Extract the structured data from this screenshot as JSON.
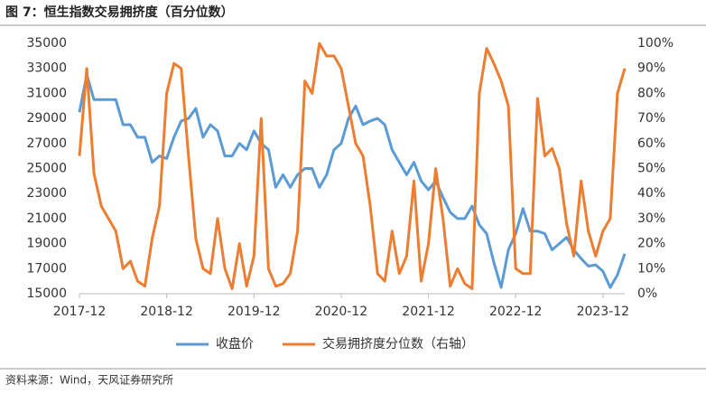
{
  "chart_data": {
    "type": "line",
    "title": "图 7：恒生指数交易拥挤度（百分位数）",
    "source": "资料来源：Wind，天风证券研究所",
    "x": [
      "2017-12",
      "2018-01",
      "2018-02",
      "2018-03",
      "2018-04",
      "2018-05",
      "2018-06",
      "2018-07",
      "2018-08",
      "2018-09",
      "2018-10",
      "2018-11",
      "2018-12",
      "2019-01",
      "2019-02",
      "2019-03",
      "2019-04",
      "2019-05",
      "2019-06",
      "2019-07",
      "2019-08",
      "2019-09",
      "2019-10",
      "2019-11",
      "2019-12",
      "2020-01",
      "2020-02",
      "2020-03",
      "2020-04",
      "2020-05",
      "2020-06",
      "2020-07",
      "2020-08",
      "2020-09",
      "2020-10",
      "2020-11",
      "2020-12",
      "2021-01",
      "2021-02",
      "2021-03",
      "2021-04",
      "2021-05",
      "2021-06",
      "2021-07",
      "2021-08",
      "2021-09",
      "2021-10",
      "2021-11",
      "2021-12",
      "2022-01",
      "2022-02",
      "2022-03",
      "2022-04",
      "2022-05",
      "2022-06",
      "2022-07",
      "2022-08",
      "2022-09",
      "2022-10",
      "2022-11",
      "2022-12",
      "2023-01",
      "2023-02",
      "2023-03",
      "2023-04",
      "2023-05",
      "2023-06",
      "2023-07",
      "2023-08",
      "2023-09",
      "2023-10",
      "2023-11",
      "2023-12",
      "2024-01",
      "2024-02",
      "2024-03"
    ],
    "xticks": [
      "2017-12",
      "2018-12",
      "2019-12",
      "2020-12",
      "2021-12",
      "2022-12",
      "2023-12"
    ],
    "ylim": [
      15000,
      35000
    ],
    "yticks": [
      15000,
      17000,
      19000,
      21000,
      23000,
      25000,
      27000,
      29000,
      31000,
      33000,
      35000
    ],
    "y2lim": [
      0,
      100
    ],
    "y2ticks": [
      {
        "value": 0,
        "label": "0%"
      },
      {
        "value": 10,
        "label": "10%"
      },
      {
        "value": 20,
        "label": "20%"
      },
      {
        "value": 30,
        "label": "30%"
      },
      {
        "value": 40,
        "label": "40%"
      },
      {
        "value": 50,
        "label": "50%"
      },
      {
        "value": 60,
        "label": "60%"
      },
      {
        "value": 70,
        "label": "70%"
      },
      {
        "value": 80,
        "label": "80%"
      },
      {
        "value": 90,
        "label": "90%"
      },
      {
        "value": 100,
        "label": "100%"
      }
    ],
    "series": [
      {
        "name": "收盘价",
        "color": "#5b9bd5",
        "values": [
          29500,
          32500,
          30500,
          30500,
          30500,
          30500,
          28500,
          28500,
          27500,
          27500,
          25500,
          26000,
          25800,
          27500,
          28800,
          29000,
          29800,
          27500,
          28500,
          28000,
          26000,
          26000,
          27000,
          26500,
          28000,
          27000,
          26500,
          23500,
          24500,
          23500,
          24500,
          25000,
          25000,
          23500,
          24500,
          26500,
          27000,
          29000,
          30000,
          28500,
          28800,
          29000,
          28500,
          26500,
          25500,
          24500,
          25500,
          24000,
          23300,
          24000,
          22700,
          21500,
          21000,
          21000,
          22000,
          20500,
          19800,
          17500,
          15500,
          18500,
          19800,
          21800,
          20000,
          20000,
          19800,
          18500,
          19000,
          19500,
          18500,
          17800,
          17200,
          17300,
          16800,
          15500,
          16500,
          18200
        ]
      },
      {
        "name": "交易拥挤度分位数（右轴）",
        "color": "#ed7d31",
        "axis": "y2",
        "values": [
          55,
          90,
          48,
          35,
          30,
          25,
          10,
          13,
          5,
          3,
          22,
          35,
          80,
          92,
          90,
          55,
          22,
          10,
          8,
          30,
          10,
          2,
          20,
          3,
          15,
          70,
          10,
          3,
          4,
          8,
          25,
          85,
          80,
          100,
          95,
          95,
          90,
          75,
          60,
          55,
          35,
          8,
          5,
          25,
          8,
          15,
          45,
          5,
          20,
          50,
          30,
          3,
          10,
          4,
          2,
          80,
          98,
          92,
          85,
          75,
          10,
          8,
          8,
          78,
          55,
          58,
          50,
          28,
          15,
          45,
          25,
          15,
          25,
          30,
          80,
          90
        ]
      }
    ]
  }
}
